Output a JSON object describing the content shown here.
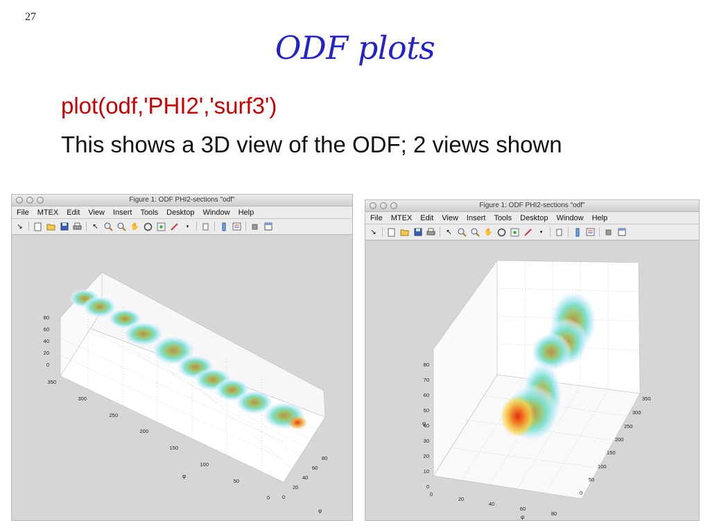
{
  "slide": {
    "number": "27",
    "title": "ODF plots",
    "code_line": "plot(odf,'PHI2','surf3')",
    "description": "This shows a 3D view of the ODF; 2 views shown"
  },
  "windows": [
    {
      "title": "Figure 1: ODF PHI2-sections \"odf\"",
      "menu": [
        "File",
        "MTEX",
        "Edit",
        "View",
        "Insert",
        "Tools",
        "Desktop",
        "Window",
        "Help"
      ],
      "z_ticks": [
        "80",
        "60",
        "40",
        "20",
        "0"
      ],
      "y_ticks": [
        "350",
        "300",
        "250",
        "200",
        "150",
        "100",
        "50",
        "0"
      ],
      "x_ticks": [
        "0",
        "20",
        "40",
        "60",
        "80"
      ],
      "axis_symbols": [
        "φ",
        "φ"
      ]
    },
    {
      "title": "Figure 1: ODF PHI2-sections \"odf\"",
      "menu": [
        "File",
        "MTEX",
        "Edit",
        "View",
        "Insert",
        "Tools",
        "Desktop",
        "Window",
        "Help"
      ],
      "z_ticks": [
        "80",
        "70",
        "60",
        "50",
        "40",
        "30",
        "20",
        "10",
        "0"
      ],
      "y_ticks": [
        "350",
        "300",
        "250",
        "200",
        "150",
        "100",
        "50",
        "0"
      ],
      "x_ticks": [
        "0",
        "20",
        "40",
        "60",
        "80"
      ],
      "axis_symbols": [
        "φ",
        "φ"
      ]
    }
  ],
  "toolbar_icons": [
    "dock-arrow-icon",
    "new-figure-icon",
    "open-file-icon",
    "save-icon",
    "print-icon",
    "pointer-icon",
    "zoom-in-icon",
    "zoom-out-icon",
    "pan-hand-icon",
    "rotate-3d-icon",
    "data-cursor-icon",
    "brush-icon",
    "dropdown-arrow-icon",
    "link-plot-icon",
    "insert-colorbar-icon",
    "insert-legend-icon",
    "hide-tools-icon",
    "show-tools-icon"
  ],
  "colors": {
    "title": "#2323c8",
    "code": "#c80000",
    "window_bg": "#d6d6d6"
  }
}
